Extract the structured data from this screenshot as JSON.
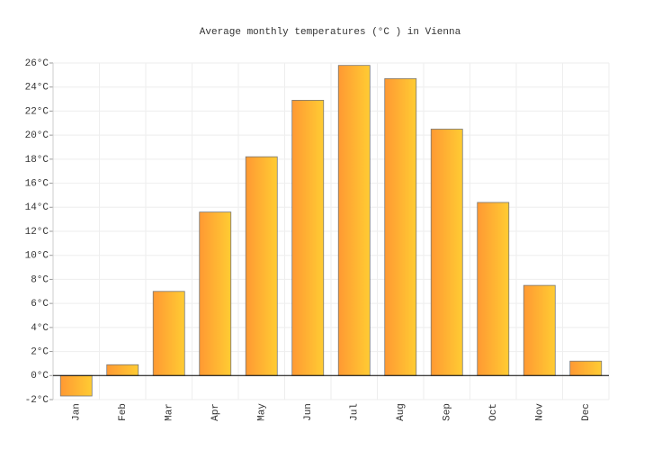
{
  "chart_data": {
    "type": "bar",
    "title": "Average monthly temperatures (°C ) in Vienna",
    "categories": [
      "Jan",
      "Feb",
      "Mar",
      "Apr",
      "May",
      "Jun",
      "Jul",
      "Aug",
      "Sep",
      "Oct",
      "Nov",
      "Dec"
    ],
    "values": [
      -1.7,
      0.9,
      7.0,
      13.6,
      18.2,
      22.9,
      25.8,
      24.7,
      20.5,
      14.4,
      7.5,
      1.2
    ],
    "gradient": [
      "#ff9933",
      "#ffcc33"
    ],
    "ylim": [
      -2,
      26
    ],
    "yticks": [
      {
        "value": -2,
        "label": "-2°C"
      },
      {
        "value": 0,
        "label": "0°C"
      },
      {
        "value": 2,
        "label": "2°C"
      },
      {
        "value": 4,
        "label": "4°C"
      },
      {
        "value": 6,
        "label": "6°C"
      },
      {
        "value": 8,
        "label": "8°C"
      },
      {
        "value": 10,
        "label": "10°C"
      },
      {
        "value": 12,
        "label": "12°C"
      },
      {
        "value": 14,
        "label": "14°C"
      },
      {
        "value": 16,
        "label": "16°C"
      },
      {
        "value": 18,
        "label": "18°C"
      },
      {
        "value": 20,
        "label": "20°C"
      },
      {
        "value": 22,
        "label": "22°C"
      },
      {
        "value": 24,
        "label": "24°C"
      },
      {
        "value": 26,
        "label": "26°C"
      }
    ],
    "grid": true
  }
}
